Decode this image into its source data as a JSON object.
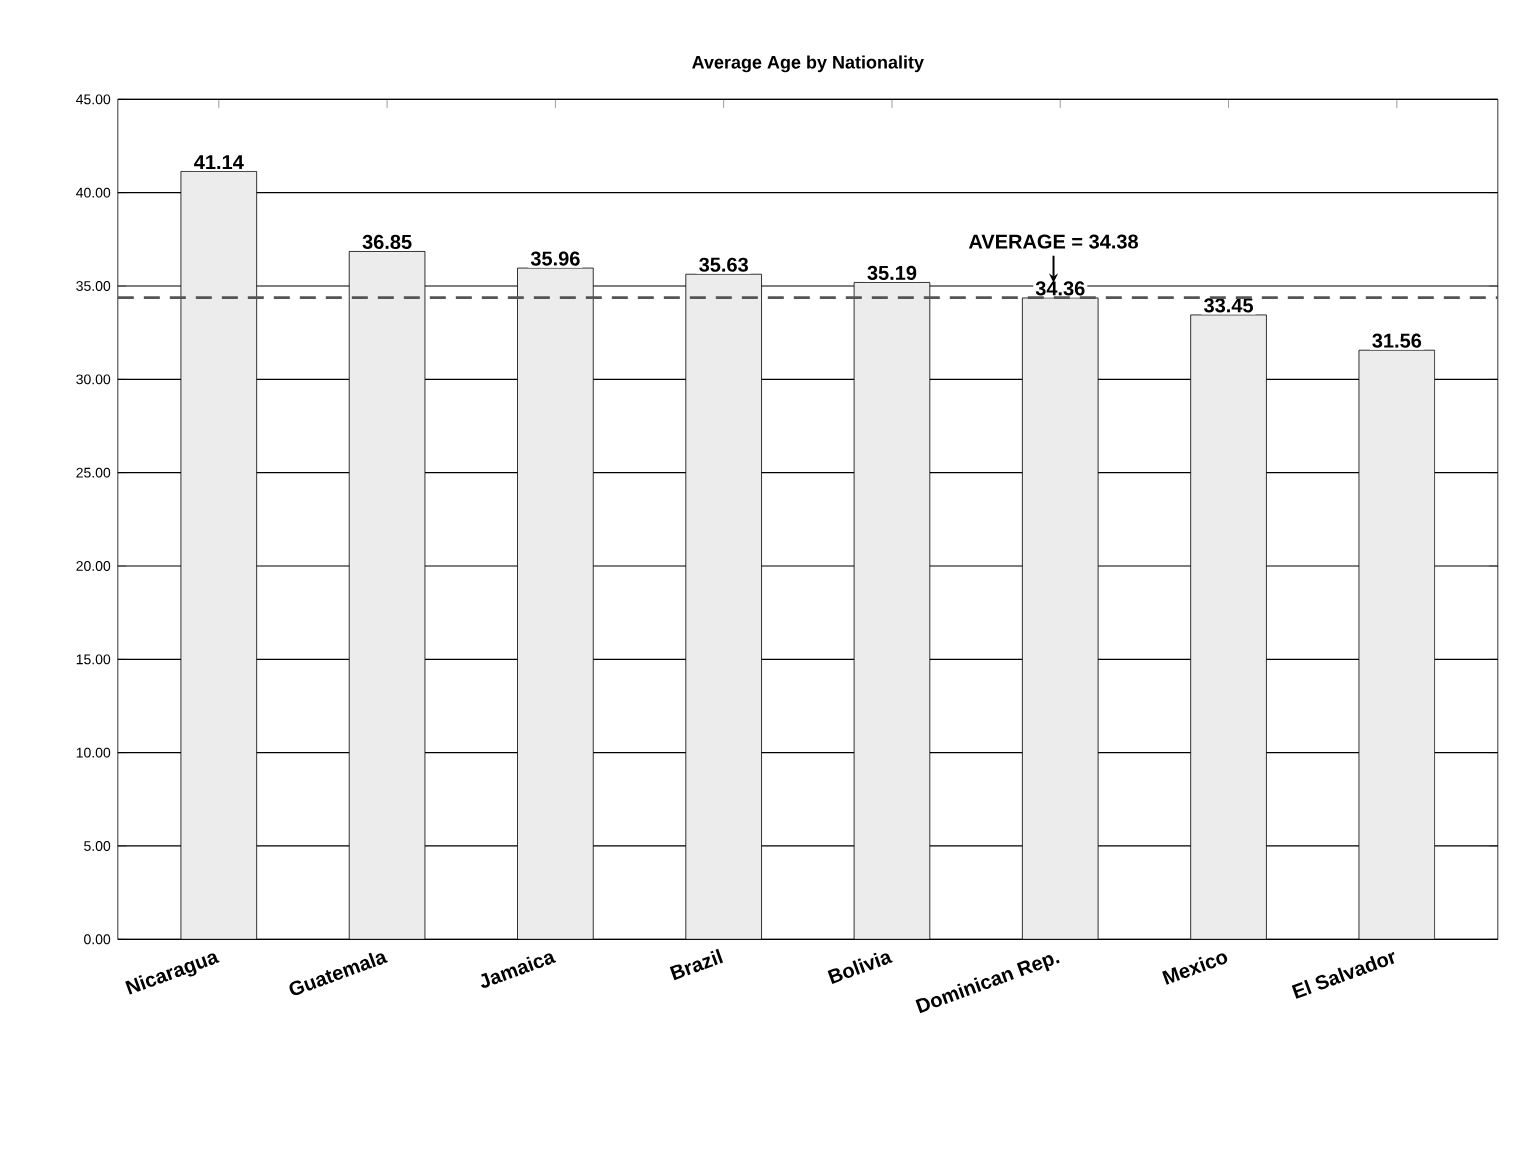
{
  "chart_data": {
    "type": "bar",
    "title": "Average Age by Nationality",
    "categories": [
      "Nicaragua",
      "Guatemala",
      "Jamaica",
      "Brazil",
      "Bolivia",
      "Dominican Rep.",
      "Mexico",
      "El Salvador"
    ],
    "values": [
      41.14,
      36.85,
      35.96,
      35.63,
      35.19,
      34.36,
      33.45,
      31.56
    ],
    "color": "#ececec",
    "ylim": [
      0,
      45
    ],
    "yticks": [
      {
        "value": 0,
        "label": "0.00"
      },
      {
        "value": 5,
        "label": "5.00"
      },
      {
        "value": 10,
        "label": "10.00"
      },
      {
        "value": 15,
        "label": "15.00"
      },
      {
        "value": 20,
        "label": "20.00"
      },
      {
        "value": 25,
        "label": "25.00"
      },
      {
        "value": 30,
        "label": "30.00"
      },
      {
        "value": 35,
        "label": "35.00"
      },
      {
        "value": 40,
        "label": "40.00"
      },
      {
        "value": 45,
        "label": "45.00"
      }
    ],
    "grid": "y",
    "data_labels": true,
    "ref_lines": [
      {
        "axis": "y",
        "value": 34.38,
        "label": "AVERAGE = 34.38",
        "line_style": "dashed",
        "color": "#555555"
      }
    ]
  }
}
